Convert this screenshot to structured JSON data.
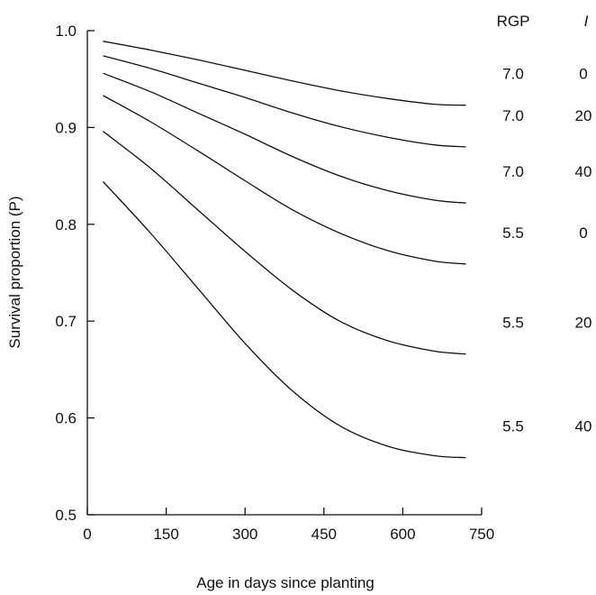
{
  "chart_data": {
    "type": "line",
    "title": "",
    "xlabel": "Age in days since planting",
    "ylabel": "Survival proportion (P)",
    "xlim": [
      0,
      750
    ],
    "ylim": [
      0.5,
      1.0
    ],
    "x_ticks": [
      "0",
      "150",
      "300",
      "450",
      "600",
      "750"
    ],
    "y_ticks": [
      "0.5",
      "0.6",
      "0.7",
      "0.8",
      "0.9",
      "1.0"
    ],
    "grid": false,
    "legend": "right",
    "header": {
      "rgp": "RGP",
      "i": "I"
    },
    "series": [
      {
        "rgp": "7.0",
        "i": "0",
        "x": [
          30,
          120,
          210,
          300,
          390,
          480,
          570,
          660,
          720
        ],
        "y": [
          0.989,
          0.98,
          0.97,
          0.959,
          0.948,
          0.938,
          0.93,
          0.924,
          0.923
        ]
      },
      {
        "rgp": "7.0",
        "i": "20",
        "x": [
          30,
          120,
          210,
          300,
          390,
          480,
          570,
          660,
          720
        ],
        "y": [
          0.974,
          0.961,
          0.946,
          0.931,
          0.915,
          0.901,
          0.89,
          0.882,
          0.88
        ]
      },
      {
        "rgp": "7.0",
        "i": "40",
        "x": [
          30,
          120,
          210,
          300,
          390,
          480,
          570,
          660,
          720
        ],
        "y": [
          0.956,
          0.937,
          0.915,
          0.893,
          0.87,
          0.85,
          0.835,
          0.825,
          0.822
        ]
      },
      {
        "rgp": "5.5",
        "i": "0",
        "x": [
          30,
          120,
          210,
          300,
          390,
          480,
          570,
          660,
          720
        ],
        "y": [
          0.933,
          0.906,
          0.876,
          0.845,
          0.815,
          0.791,
          0.773,
          0.762,
          0.759
        ]
      },
      {
        "rgp": "5.5",
        "i": "20",
        "x": [
          30,
          120,
          210,
          300,
          390,
          480,
          570,
          660,
          720
        ],
        "y": [
          0.896,
          0.858,
          0.815,
          0.772,
          0.732,
          0.7,
          0.68,
          0.669,
          0.666
        ]
      },
      {
        "rgp": "5.5",
        "i": "40",
        "x": [
          30,
          120,
          210,
          300,
          390,
          480,
          570,
          660,
          720
        ],
        "y": [
          0.844,
          0.791,
          0.734,
          0.677,
          0.628,
          0.592,
          0.571,
          0.561,
          0.559
        ]
      }
    ]
  }
}
